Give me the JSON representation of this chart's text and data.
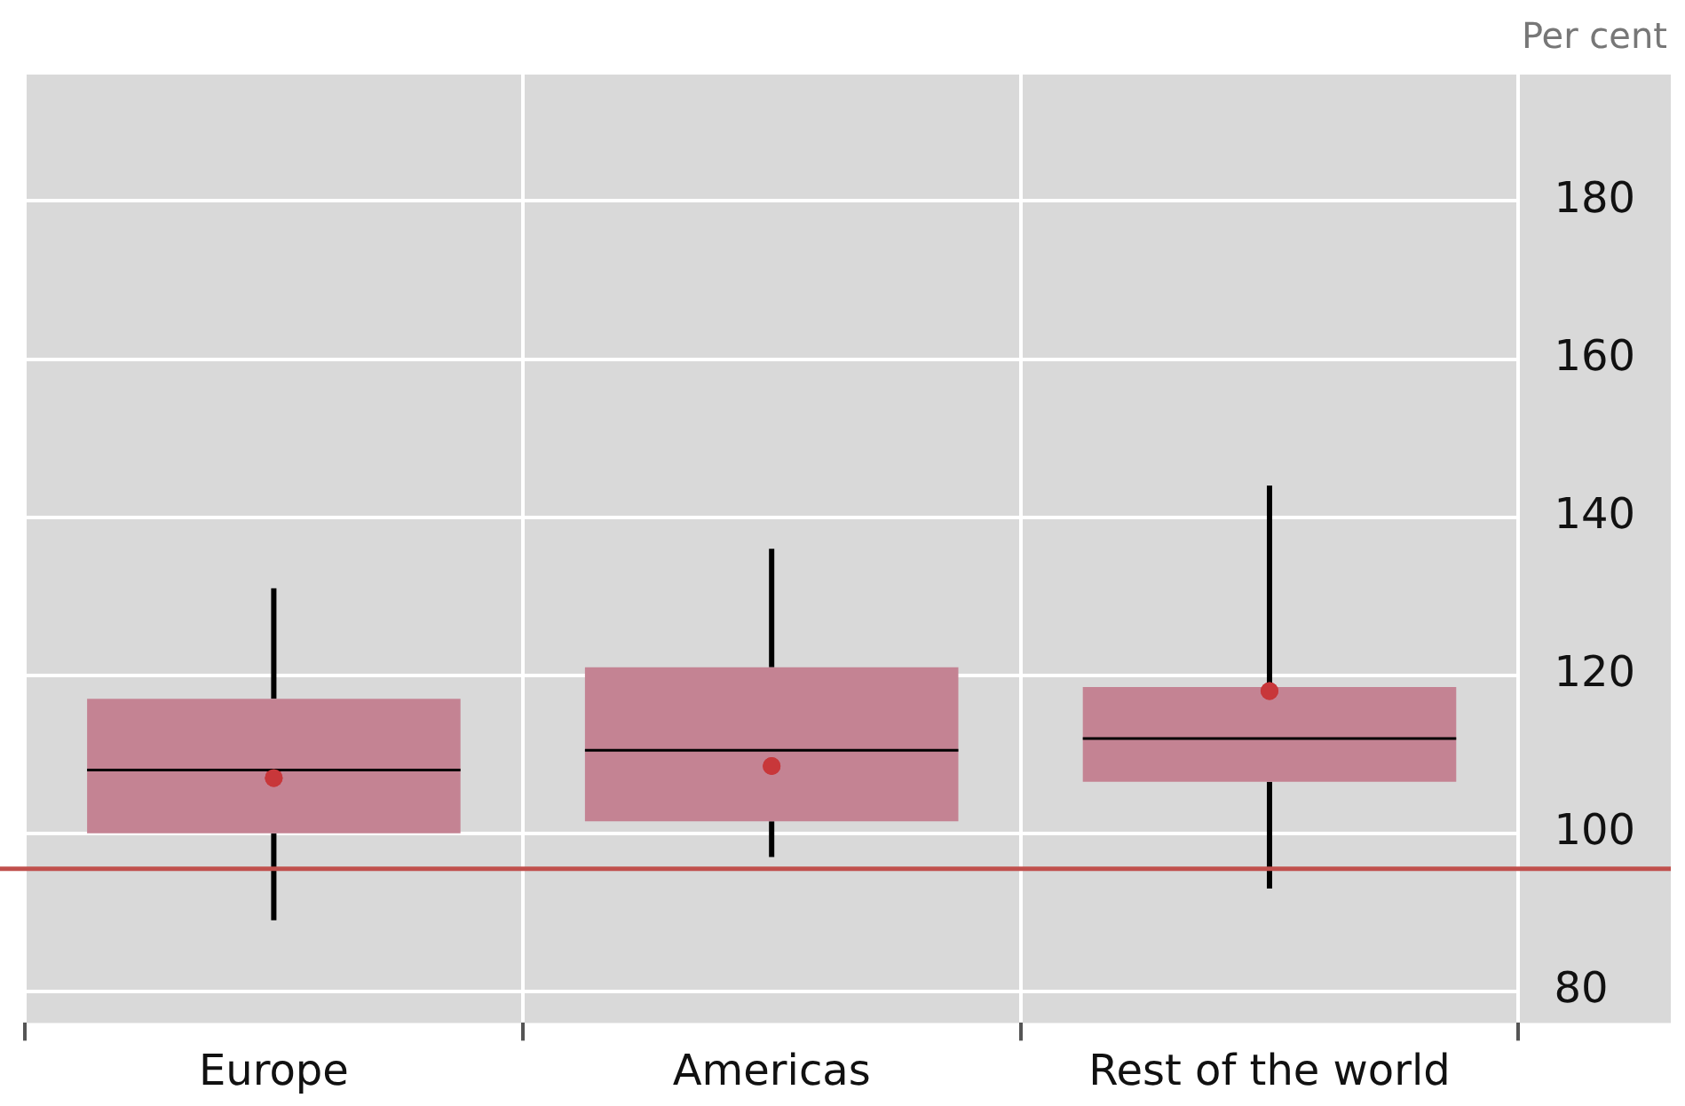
{
  "chart_data": {
    "type": "box",
    "ylabel": "Per cent",
    "categories": [
      "Europe",
      "Americas",
      "Rest of the world"
    ],
    "boxes": [
      {
        "low": 89,
        "q1": 100,
        "median": 108,
        "q3": 117,
        "high": 131,
        "mean": 107
      },
      {
        "low": 97,
        "q1": 101.5,
        "median": 110.5,
        "q3": 121,
        "high": 136,
        "mean": 108.5
      },
      {
        "low": 93,
        "q1": 106.5,
        "median": 112,
        "q3": 118.5,
        "high": 144,
        "mean": 118
      }
    ],
    "color": "#c48393",
    "ylim": [
      76,
      196
    ],
    "yticks": [
      80,
      100,
      120,
      140,
      160,
      180
    ],
    "grid": true,
    "legend": false,
    "ref_lines": [
      {
        "axis": "y",
        "value": 95.5,
        "color": "#c0504d"
      }
    ]
  }
}
